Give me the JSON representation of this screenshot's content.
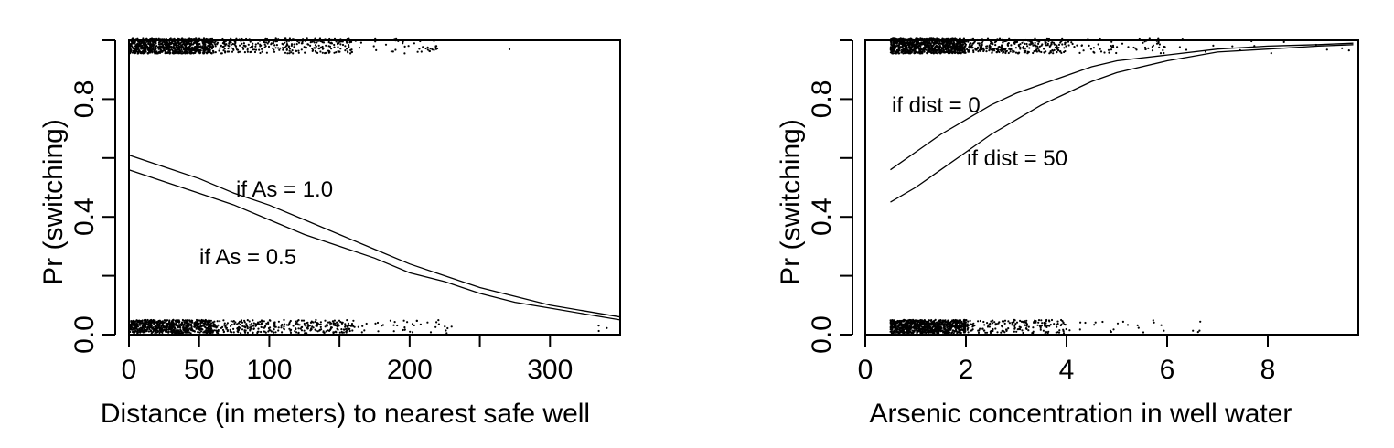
{
  "chart_data": [
    {
      "type": "scatter",
      "title": "",
      "xlabel": "Distance (in meters) to nearest safe well",
      "ylabel": "Pr (switching)",
      "xlim": [
        0,
        350
      ],
      "ylim": [
        0,
        1
      ],
      "xticks": [
        0,
        50,
        100,
        150,
        200,
        250,
        300
      ],
      "xtick_labels": [
        "0",
        "50",
        "100",
        "",
        "200",
        "",
        "300"
      ],
      "yticks": [
        0,
        0.2,
        0.4,
        0.6,
        0.8,
        1.0
      ],
      "ytick_labels": [
        "0.0",
        "",
        "0.4",
        "",
        "0.8",
        ""
      ],
      "grid": false,
      "curves": [
        {
          "label": "if  As = 1.0",
          "x": [
            0,
            25,
            50,
            75,
            100,
            125,
            150,
            175,
            200,
            225,
            250,
            275,
            300,
            325,
            350
          ],
          "y": [
            0.61,
            0.57,
            0.53,
            0.48,
            0.44,
            0.39,
            0.34,
            0.29,
            0.24,
            0.2,
            0.16,
            0.13,
            0.1,
            0.08,
            0.06
          ]
        },
        {
          "label": "if  As = 0.5",
          "x": [
            0,
            25,
            50,
            75,
            100,
            125,
            150,
            175,
            200,
            225,
            250,
            275,
            300,
            325,
            350
          ],
          "y": [
            0.56,
            0.52,
            0.48,
            0.44,
            0.39,
            0.34,
            0.3,
            0.26,
            0.21,
            0.18,
            0.14,
            0.11,
            0.09,
            0.07,
            0.05
          ]
        }
      ],
      "jitter_clusters": [
        {
          "y": 1,
          "x_range": [
            0,
            60
          ],
          "count": 900
        },
        {
          "y": 1,
          "x_range": [
            60,
            160
          ],
          "count": 300
        },
        {
          "y": 1,
          "x_range": [
            160,
            220
          ],
          "count": 40
        },
        {
          "y": 1,
          "x_range": [
            270,
            272
          ],
          "count": 1
        },
        {
          "y": 0,
          "x_range": [
            0,
            60
          ],
          "count": 700
        },
        {
          "y": 0,
          "x_range": [
            60,
            160
          ],
          "count": 320
        },
        {
          "y": 0,
          "x_range": [
            160,
            230
          ],
          "count": 40
        },
        {
          "y": 0,
          "x_range": [
            300,
            345
          ],
          "count": 3
        }
      ]
    },
    {
      "type": "scatter",
      "title": "",
      "xlabel": "Arsenic concentration in well water",
      "ylabel": "Pr (switching)",
      "xlim": [
        0,
        9.8
      ],
      "ylim": [
        0,
        1
      ],
      "xticks": [
        0,
        2,
        4,
        6,
        8
      ],
      "xtick_labels": [
        "0",
        "2",
        "4",
        "6",
        "8"
      ],
      "yticks": [
        0,
        0.2,
        0.4,
        0.6,
        0.8,
        1.0
      ],
      "ytick_labels": [
        "0.0",
        "",
        "0.4",
        "",
        "0.8",
        ""
      ],
      "grid": false,
      "curves": [
        {
          "label": "if  dist = 0",
          "x": [
            0.5,
            1,
            1.5,
            2,
            2.5,
            3,
            3.5,
            4,
            4.5,
            5,
            6,
            7,
            8,
            9,
            9.7
          ],
          "y": [
            0.56,
            0.62,
            0.68,
            0.73,
            0.78,
            0.82,
            0.85,
            0.88,
            0.91,
            0.93,
            0.95,
            0.97,
            0.98,
            0.985,
            0.99
          ]
        },
        {
          "label": "if  dist = 50",
          "x": [
            0.5,
            1,
            1.5,
            2,
            2.5,
            3,
            3.5,
            4,
            4.5,
            5,
            6,
            7,
            8,
            9,
            9.7
          ],
          "y": [
            0.45,
            0.5,
            0.56,
            0.62,
            0.68,
            0.73,
            0.78,
            0.82,
            0.86,
            0.89,
            0.93,
            0.96,
            0.97,
            0.98,
            0.985
          ]
        }
      ],
      "jitter_clusters": [
        {
          "y": 1,
          "x_range": [
            0.5,
            2
          ],
          "count": 900
        },
        {
          "y": 1,
          "x_range": [
            2,
            4
          ],
          "count": 280
        },
        {
          "y": 1,
          "x_range": [
            4,
            6
          ],
          "count": 60
        },
        {
          "y": 1,
          "x_range": [
            6,
            9.7
          ],
          "count": 15
        },
        {
          "y": 0,
          "x_range": [
            0.5,
            2
          ],
          "count": 800
        },
        {
          "y": 0,
          "x_range": [
            2,
            4
          ],
          "count": 170
        },
        {
          "y": 0,
          "x_range": [
            4,
            6
          ],
          "count": 20
        },
        {
          "y": 0,
          "x_range": [
            6.5,
            8
          ],
          "count": 4
        }
      ]
    }
  ]
}
